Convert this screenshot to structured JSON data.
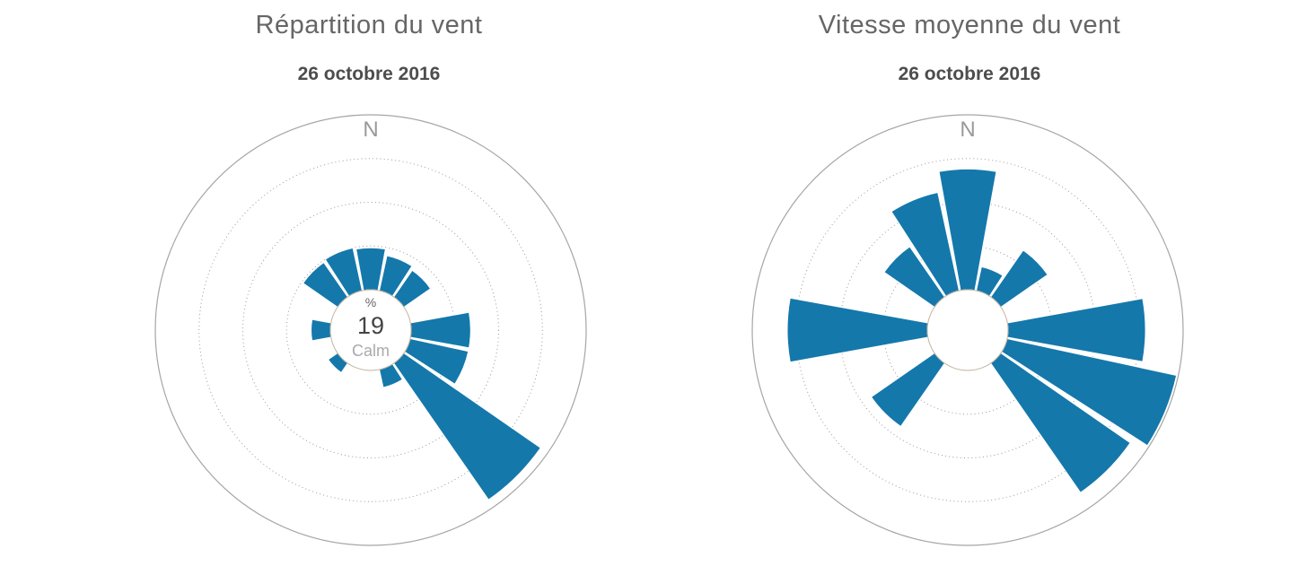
{
  "colors": {
    "bar": "#1478ab",
    "outer_circle": "#a6a6a6",
    "grid_ring": "#9a9a9a",
    "hole_border": "#c3b39e",
    "north_label": "#999999",
    "title": "#666666",
    "subtitle": "#4d4d4d"
  },
  "chart_data": [
    {
      "type": "windrose",
      "title": "Répartition du vent",
      "subtitle": "26 octobre 2016",
      "north_label": "N",
      "center_label": {
        "top": "%",
        "value": "19",
        "bottom": "Calm"
      },
      "calm_percent": 19,
      "axis": {
        "min": 0,
        "max": 20,
        "ring_step": 5,
        "rings_labeled": false,
        "grid": "dotted",
        "legend": "none"
      },
      "value_unit": "%",
      "directions": [
        "N",
        "NNE",
        "NE",
        "ENE",
        "E",
        "ESE",
        "SE",
        "SSE",
        "S",
        "SSW",
        "SW",
        "WSW",
        "W",
        "WNW",
        "NW",
        "NNW"
      ],
      "values": [
        4.8,
        4.1,
        3.7,
        0,
        6.8,
        6.8,
        19,
        2.1,
        0,
        0,
        1.3,
        0,
        2.2,
        0,
        4.8,
        5
      ]
    },
    {
      "type": "windrose",
      "title": "Vitesse moyenne du vent",
      "subtitle": "26 octobre 2016",
      "north_label": "N",
      "center_label": {
        "top": "",
        "value": "",
        "bottom": ""
      },
      "axis": {
        "min": 0,
        "max": 20,
        "ring_step": 5,
        "rings_labeled": false,
        "grid": "dotted",
        "legend": "none"
      },
      "value_unit": "",
      "directions": [
        "N",
        "NNE",
        "NE",
        "ENE",
        "E",
        "ESE",
        "SE",
        "SSE",
        "S",
        "SSW",
        "SW",
        "WSW",
        "W",
        "WNW",
        "NW",
        "NNW"
      ],
      "values": [
        13.8,
        2.8,
        6.5,
        0,
        15.7,
        19.8,
        18,
        0,
        0,
        0,
        8.8,
        0,
        16,
        0,
        7,
        11.5
      ]
    }
  ],
  "layout_labels": {
    "left_chart": "windrose-repartition",
    "right_chart": "windrose-vitesse"
  }
}
